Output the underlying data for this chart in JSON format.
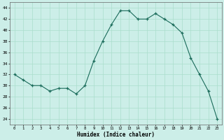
{
  "x": [
    0,
    1,
    2,
    3,
    4,
    5,
    6,
    7,
    8,
    9,
    10,
    11,
    12,
    13,
    14,
    15,
    16,
    17,
    18,
    19,
    20,
    21,
    22,
    23
  ],
  "y": [
    32,
    31,
    30,
    30,
    29,
    29.5,
    29.5,
    28.5,
    30,
    34.5,
    38,
    41,
    43.5,
    43.5,
    42,
    42,
    43,
    42,
    41,
    39.5,
    35,
    32,
    29,
    24
  ],
  "line_color": "#1a6b5a",
  "marker_color": "#1a6b5a",
  "bg_color": "#cceee8",
  "grid_color": "#aaddcc",
  "xlabel": "Humidex (Indice chaleur)",
  "ylim": [
    23,
    45
  ],
  "xlim": [
    -0.5,
    23.5
  ],
  "yticks": [
    24,
    26,
    28,
    30,
    32,
    34,
    36,
    38,
    40,
    42,
    44
  ],
  "xticks": [
    0,
    1,
    2,
    3,
    4,
    5,
    6,
    7,
    8,
    9,
    10,
    11,
    12,
    13,
    14,
    15,
    16,
    17,
    18,
    19,
    20,
    21,
    22,
    23
  ]
}
